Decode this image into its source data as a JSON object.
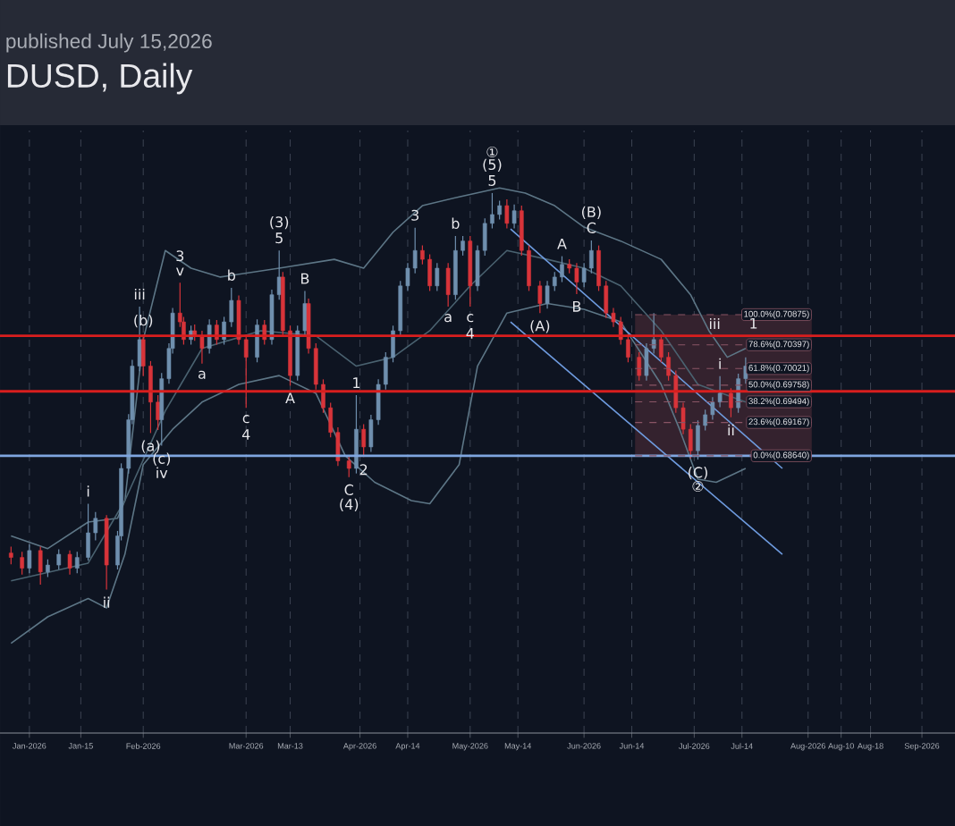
{
  "chart_data": {
    "type": "candlestick",
    "title": "DUSD, Daily",
    "subtitle": "published July 15,2026",
    "x": [
      "2025-12-27",
      "2025-12-30",
      "2026-01-01",
      "2026-01-04",
      "2026-01-06",
      "2026-01-09",
      "2026-01-12",
      "2026-01-14",
      "2026-01-17",
      "2026-01-19",
      "2026-01-22",
      "2026-01-25",
      "2026-01-26",
      "2026-01-28",
      "2026-01-29",
      "2026-01-31",
      "2026-02-01",
      "2026-02-03",
      "2026-02-05",
      "2026-02-06",
      "2026-02-08",
      "2026-02-09",
      "2026-02-11",
      "2026-02-12",
      "2026-02-14",
      "2026-02-15",
      "2026-02-17",
      "2026-02-19",
      "2026-02-21",
      "2026-02-23",
      "2026-02-25",
      "2026-02-27",
      "2026-03-01",
      "2026-03-04",
      "2026-03-06",
      "2026-03-08",
      "2026-03-10",
      "2026-03-11",
      "2026-03-13",
      "2026-03-15",
      "2026-03-17",
      "2026-03-18",
      "2026-03-20",
      "2026-03-22",
      "2026-03-24",
      "2026-03-26",
      "2026-03-29",
      "2026-03-31",
      "2026-04-02",
      "2026-04-04",
      "2026-04-06",
      "2026-04-08",
      "2026-04-10",
      "2026-04-12",
      "2026-04-14",
      "2026-04-16",
      "2026-04-18",
      "2026-04-20",
      "2026-04-22",
      "2026-04-25",
      "2026-04-27",
      "2026-04-29",
      "2026-05-01",
      "2026-05-03",
      "2026-05-05",
      "2026-05-07",
      "2026-05-09",
      "2026-05-11",
      "2026-05-13",
      "2026-05-15",
      "2026-05-17",
      "2026-05-20",
      "2026-05-22",
      "2026-05-24",
      "2026-05-26",
      "2026-05-28",
      "2026-05-30",
      "2026-06-01",
      "2026-06-03",
      "2026-06-05",
      "2026-06-07",
      "2026-06-09",
      "2026-06-11",
      "2026-06-13",
      "2026-06-16",
      "2026-06-18",
      "2026-06-20",
      "2026-06-22",
      "2026-06-24",
      "2026-06-26",
      "2026-06-28",
      "2026-06-30",
      "2026-07-02",
      "2026-07-04",
      "2026-07-06",
      "2026-07-08",
      "2026-07-11",
      "2026-07-13",
      "2026-07-15"
    ],
    "ohlc": [
      [
        0.671,
        0.672,
        0.6692,
        0.6703
      ],
      [
        0.6703,
        0.6712,
        0.6676,
        0.6686
      ],
      [
        0.6686,
        0.6724,
        0.6678,
        0.6714
      ],
      [
        0.6714,
        0.672,
        0.666,
        0.668
      ],
      [
        0.668,
        0.67,
        0.6672,
        0.6691
      ],
      [
        0.6691,
        0.6716,
        0.6684,
        0.6708
      ],
      [
        0.6708,
        0.6714,
        0.6676,
        0.6686
      ],
      [
        0.6686,
        0.6712,
        0.6678,
        0.6703
      ],
      [
        0.6703,
        0.6788,
        0.6698,
        0.6742
      ],
      [
        0.6742,
        0.6775,
        0.673,
        0.6765
      ],
      [
        0.6765,
        0.677,
        0.6652,
        0.6691
      ],
      [
        0.6691,
        0.6745,
        0.6684,
        0.6737
      ],
      [
        0.6737,
        0.6852,
        0.673,
        0.6844
      ],
      [
        0.6844,
        0.693,
        0.6836,
        0.6921
      ],
      [
        0.6921,
        0.7016,
        0.6914,
        0.7006
      ],
      [
        0.7006,
        0.71,
        0.6998,
        0.7048
      ],
      [
        0.7048,
        0.7056,
        0.699,
        0.7006
      ],
      [
        0.7006,
        0.7014,
        0.69,
        0.6949
      ],
      [
        0.6949,
        0.696,
        0.6905,
        0.6921
      ],
      [
        0.6921,
        0.6995,
        0.688,
        0.6986
      ],
      [
        0.6986,
        0.7042,
        0.6978,
        0.7034
      ],
      [
        0.7034,
        0.7098,
        0.7026,
        0.709
      ],
      [
        0.709,
        0.7138,
        0.7068,
        0.7076
      ],
      [
        0.7076,
        0.7084,
        0.704,
        0.7048
      ],
      [
        0.7048,
        0.707,
        0.704,
        0.7062
      ],
      [
        0.7062,
        0.7072,
        0.7046,
        0.7054
      ],
      [
        0.7054,
        0.7062,
        0.701,
        0.7034
      ],
      [
        0.7034,
        0.708,
        0.7026,
        0.7071
      ],
      [
        0.7071,
        0.7079,
        0.704,
        0.7048
      ],
      [
        0.7048,
        0.7084,
        0.704,
        0.7076
      ],
      [
        0.7076,
        0.713,
        0.7068,
        0.711
      ],
      [
        0.711,
        0.7118,
        0.704,
        0.7048
      ],
      [
        0.7048,
        0.7056,
        0.694,
        0.702
      ],
      [
        0.702,
        0.708,
        0.7012,
        0.7071
      ],
      [
        0.7071,
        0.7079,
        0.704,
        0.7048
      ],
      [
        0.7048,
        0.7127,
        0.704,
        0.7119
      ],
      [
        0.7119,
        0.7189,
        0.7111,
        0.7147
      ],
      [
        0.7147,
        0.7155,
        0.7054,
        0.7062
      ],
      [
        0.7062,
        0.707,
        0.6975,
        0.6991
      ],
      [
        0.6991,
        0.707,
        0.6983,
        0.7062
      ],
      [
        0.7062,
        0.7125,
        0.7054,
        0.7105
      ],
      [
        0.7105,
        0.7113,
        0.7026,
        0.7034
      ],
      [
        0.7034,
        0.7042,
        0.6969,
        0.6977
      ],
      [
        0.6977,
        0.6985,
        0.6932,
        0.694
      ],
      [
        0.694,
        0.6948,
        0.6893,
        0.6901
      ],
      [
        0.6901,
        0.6909,
        0.6848,
        0.6856
      ],
      [
        0.6856,
        0.6864,
        0.683,
        0.6844
      ],
      [
        0.6844,
        0.696,
        0.6836,
        0.6906
      ],
      [
        0.6906,
        0.6914,
        0.6862,
        0.6878
      ],
      [
        0.6878,
        0.6929,
        0.687,
        0.6921
      ],
      [
        0.6921,
        0.6985,
        0.6913,
        0.6977
      ],
      [
        0.6977,
        0.7028,
        0.6969,
        0.702
      ],
      [
        0.702,
        0.707,
        0.7012,
        0.7062
      ],
      [
        0.7062,
        0.7141,
        0.7054,
        0.7133
      ],
      [
        0.7133,
        0.7169,
        0.7125,
        0.7161
      ],
      [
        0.7161,
        0.7225,
        0.7153,
        0.7189
      ],
      [
        0.7189,
        0.7197,
        0.7167,
        0.7175
      ],
      [
        0.7175,
        0.7183,
        0.7125,
        0.7133
      ],
      [
        0.7133,
        0.7169,
        0.7125,
        0.7161
      ],
      [
        0.7161,
        0.7169,
        0.71,
        0.7119
      ],
      [
        0.7119,
        0.7212,
        0.7111,
        0.7189
      ],
      [
        0.7189,
        0.7212,
        0.7181,
        0.7204
      ],
      [
        0.7204,
        0.7212,
        0.71,
        0.7133
      ],
      [
        0.7133,
        0.7197,
        0.7125,
        0.7189
      ],
      [
        0.7189,
        0.724,
        0.7181,
        0.7232
      ],
      [
        0.7232,
        0.728,
        0.7224,
        0.7246
      ],
      [
        0.7246,
        0.7268,
        0.7238,
        0.726
      ],
      [
        0.726,
        0.727,
        0.7224,
        0.7232
      ],
      [
        0.7232,
        0.7262,
        0.7224,
        0.7252
      ],
      [
        0.7252,
        0.726,
        0.7181,
        0.7189
      ],
      [
        0.7189,
        0.7197,
        0.7125,
        0.7133
      ],
      [
        0.7133,
        0.7141,
        0.709,
        0.7105
      ],
      [
        0.7105,
        0.7141,
        0.7097,
        0.7133
      ],
      [
        0.7133,
        0.7155,
        0.7125,
        0.7147
      ],
      [
        0.7147,
        0.718,
        0.7139,
        0.7167
      ],
      [
        0.7167,
        0.7175,
        0.7153,
        0.7161
      ],
      [
        0.7161,
        0.7169,
        0.712,
        0.7139
      ],
      [
        0.7139,
        0.7169,
        0.7131,
        0.7161
      ],
      [
        0.7161,
        0.7205,
        0.7153,
        0.7189
      ],
      [
        0.7189,
        0.7197,
        0.7125,
        0.7133
      ],
      [
        0.7133,
        0.7141,
        0.7082,
        0.709
      ],
      [
        0.709,
        0.7098,
        0.7068,
        0.7076
      ],
      [
        0.7076,
        0.7084,
        0.704,
        0.7048
      ],
      [
        0.7048,
        0.7056,
        0.7012,
        0.702
      ],
      [
        0.702,
        0.7028,
        0.6983,
        0.6991
      ],
      [
        0.6991,
        0.7042,
        0.6983,
        0.7034
      ],
      [
        0.7034,
        0.709,
        0.7026,
        0.7048
      ],
      [
        0.7048,
        0.7056,
        0.7012,
        0.702
      ],
      [
        0.702,
        0.7028,
        0.6983,
        0.6991
      ],
      [
        0.6991,
        0.6999,
        0.6932,
        0.694
      ],
      [
        0.694,
        0.6948,
        0.6898,
        0.6906
      ],
      [
        0.6906,
        0.6914,
        0.686,
        0.6872
      ],
      [
        0.6872,
        0.692,
        0.6858,
        0.6912
      ],
      [
        0.6912,
        0.6937,
        0.6904,
        0.6929
      ],
      [
        0.6929,
        0.6957,
        0.6921,
        0.6949
      ],
      [
        0.6949,
        0.699,
        0.6941,
        0.6963
      ],
      [
        0.6963,
        0.6971,
        0.6925,
        0.694
      ],
      [
        0.694,
        0.6994,
        0.6932,
        0.6986
      ],
      [
        0.6986,
        0.702,
        0.6978,
        0.7006
      ]
    ],
    "colors": [
      "#d8343a",
      "#d8343a",
      "#6f8fae",
      "#d8343a",
      "#6f8fae",
      "#6f8fae",
      "#d8343a",
      "#6f8fae",
      "#6f8fae",
      "#6f8fae",
      "#d8343a",
      "#6f8fae",
      "#6f8fae",
      "#6f8fae",
      "#6f8fae",
      "#6f8fae",
      "#d8343a",
      "#d8343a",
      "#d8343a",
      "#6f8fae",
      "#6f8fae",
      "#6f8fae",
      "#d8343a",
      "#d8343a",
      "#6f8fae",
      "#d8343a",
      "#d8343a",
      "#6f8fae",
      "#d8343a",
      "#6f8fae",
      "#6f8fae",
      "#d8343a",
      "#d8343a",
      "#6f8fae",
      "#d8343a",
      "#6f8fae",
      "#6f8fae",
      "#d8343a",
      "#d8343a",
      "#6f8fae",
      "#6f8fae",
      "#d8343a",
      "#d8343a",
      "#d8343a",
      "#d8343a",
      "#d8343a",
      "#d8343a",
      "#6f8fae",
      "#d8343a",
      "#6f8fae",
      "#6f8fae",
      "#6f8fae",
      "#6f8fae",
      "#6f8fae",
      "#6f8fae",
      "#6f8fae",
      "#d8343a",
      "#d8343a",
      "#6f8fae",
      "#d8343a",
      "#6f8fae",
      "#6f8fae",
      "#d8343a",
      "#6f8fae",
      "#6f8fae",
      "#6f8fae",
      "#6f8fae",
      "#d8343a",
      "#6f8fae",
      "#d8343a",
      "#d8343a",
      "#d8343a",
      "#6f8fae",
      "#6f8fae",
      "#6f8fae",
      "#d8343a",
      "#d8343a",
      "#6f8fae",
      "#6f8fae",
      "#d8343a",
      "#d8343a",
      "#d8343a",
      "#d8343a",
      "#d8343a",
      "#d8343a",
      "#6f8fae",
      "#6f8fae",
      "#d8343a",
      "#d8343a",
      "#d8343a",
      "#d8343a",
      "#d8343a",
      "#6f8fae",
      "#6f8fae",
      "#6f8fae",
      "#6f8fae",
      "#d8343a",
      "#6f8fae",
      "#6f8fae"
    ],
    "series": [
      {
        "type": "line",
        "color": "#5d7686",
        "x": [
          "2025-12-27",
          "2026-01-06",
          "2026-01-17",
          "2026-01-25",
          "2026-01-27",
          "2026-02-01",
          "2026-02-07",
          "2026-02-14",
          "2026-02-22",
          "2026-03-10",
          "2026-03-25",
          "2026-04-02",
          "2026-04-10",
          "2026-04-18",
          "2026-04-28",
          "2026-05-09",
          "2026-05-16",
          "2026-05-24",
          "2026-06-01",
          "2026-06-11",
          "2026-06-22",
          "2026-06-30",
          "2026-07-05",
          "2026-07-10",
          "2026-07-15"
        ],
        "values": [
          0.6737,
          0.6717,
          0.6759,
          0.6765,
          0.6793,
          0.7048,
          0.7189,
          0.7161,
          0.7147,
          0.7161,
          0.7175,
          0.7161,
          0.7218,
          0.726,
          0.7274,
          0.7288,
          0.728,
          0.726,
          0.7226,
          0.7204,
          0.7175,
          0.7119,
          0.7062,
          0.702,
          0.7034
        ]
      },
      {
        "type": "line",
        "color": "#4a6270",
        "x": [
          "2025-12-27",
          "2026-01-17",
          "2026-01-27",
          "2026-02-07",
          "2026-02-17",
          "2026-03-05",
          "2026-03-20",
          "2026-03-31",
          "2026-04-10",
          "2026-04-20",
          "2026-05-01",
          "2026-05-11",
          "2026-05-22",
          "2026-06-01",
          "2026-06-11",
          "2026-06-22",
          "2026-07-02",
          "2026-07-15"
        ],
        "values": [
          0.6666,
          0.6694,
          0.6793,
          0.6935,
          0.7034,
          0.7062,
          0.7054,
          0.7006,
          0.702,
          0.7062,
          0.7133,
          0.7189,
          0.7175,
          0.7161,
          0.7133,
          0.7062,
          0.6977,
          0.6949
        ]
      },
      {
        "type": "line",
        "color": "#5d7686",
        "x": [
          "2025-12-27",
          "2026-01-06",
          "2026-01-17",
          "2026-01-22",
          "2026-01-27",
          "2026-02-01",
          "2026-02-09",
          "2026-02-17",
          "2026-02-27",
          "2026-03-10",
          "2026-03-20",
          "2026-03-28",
          "2026-04-05",
          "2026-04-15",
          "2026-04-20",
          "2026-04-28",
          "2026-05-03",
          "2026-05-11",
          "2026-05-22",
          "2026-06-01",
          "2026-06-11",
          "2026-06-22",
          "2026-06-27",
          "2026-07-02",
          "2026-07-07",
          "2026-07-15"
        ],
        "values": [
          0.6567,
          0.6609,
          0.6638,
          0.6623,
          0.6708,
          0.685,
          0.6906,
          0.6949,
          0.6977,
          0.6991,
          0.6963,
          0.6864,
          0.6822,
          0.6793,
          0.6788,
          0.685,
          0.7006,
          0.709,
          0.7105,
          0.7096,
          0.7076,
          0.6977,
          0.6906,
          0.6827,
          0.6822,
          0.6844
        ]
      },
      {
        "type": "line",
        "color": "#6f9ce0",
        "x": [
          "2026-05-12",
          "2026-07-25"
        ],
        "values": [
          0.7223,
          0.6844
        ]
      },
      {
        "type": "line",
        "color": "#6f9ce0",
        "x": [
          "2026-05-12",
          "2026-07-25"
        ],
        "values": [
          0.7076,
          0.6708
        ]
      }
    ],
    "xlim": [
      "2025-12-24",
      "2026-09-10"
    ],
    "ylim": [
      0.6425,
      0.7379
    ],
    "xticks": [
      {
        "value": "2026-01-01",
        "label": "Jan-2026"
      },
      {
        "value": "2026-01-15",
        "label": "Jan-15"
      },
      {
        "value": "2026-02-01",
        "label": "Feb-2026"
      },
      {
        "value": "2026-03-01",
        "label": "Mar-2026"
      },
      {
        "value": "2026-03-13",
        "label": "Mar-13"
      },
      {
        "value": "2026-04-01",
        "label": "Apr-2026"
      },
      {
        "value": "2026-04-14",
        "label": "Apr-14"
      },
      {
        "value": "2026-05-01",
        "label": "May-2026"
      },
      {
        "value": "2026-05-14",
        "label": "May-14"
      },
      {
        "value": "2026-06-01",
        "label": "Jun-2026"
      },
      {
        "value": "2026-06-14",
        "label": "Jun-14"
      },
      {
        "value": "2026-07-01",
        "label": "Jul-2026"
      },
      {
        "value": "2026-07-14",
        "label": "Jul-14"
      },
      {
        "value": "2026-08-01",
        "label": "Aug-2026"
      },
      {
        "value": "2026-08-10",
        "label": "Aug-10"
      },
      {
        "value": "2026-08-18",
        "label": "Aug-18"
      },
      {
        "value": "2026-09-01",
        "label": "Sep-2026"
      }
    ],
    "tick_labels": "x",
    "grid": "x",
    "bands": [
      {
        "axis": "y",
        "from": 0.6864,
        "to": 0.70875,
        "color": "#34222e"
      }
    ],
    "ref_lines": [
      {
        "axis": "y",
        "value": 0.7054,
        "color": "#d81e1e"
      },
      {
        "axis": "y",
        "value": 0.6966,
        "color": "#d81e1e"
      },
      {
        "axis": "y",
        "value": 0.6864,
        "color": "#7fa6e0"
      },
      {
        "axis": "y",
        "value": 0.70875,
        "label": "100.0%(0.70875)",
        "color": "#8a5565",
        "line_style": "dashed"
      },
      {
        "axis": "y",
        "value": 0.70397,
        "label": "78.6%(0.70397)",
        "color": "#8a5565",
        "line_style": "dashed"
      },
      {
        "axis": "y",
        "value": 0.70021,
        "label": "61.8%(0.70021)",
        "color": "#8a5565",
        "line_style": "dashed"
      },
      {
        "axis": "y",
        "value": 0.69758,
        "label": "50.0%(0.69758)",
        "color": "#8a5565",
        "line_style": "dashed"
      },
      {
        "axis": "y",
        "value": 0.69494,
        "label": "38.2%(0.69494)",
        "color": "#8a5565",
        "line_style": "dashed"
      },
      {
        "axis": "y",
        "value": 0.69167,
        "label": "23.6%(0.69167)",
        "color": "#8a5565",
        "line_style": "dashed"
      },
      {
        "axis": "y",
        "value": 0.6864,
        "label": "0.0%(0.68640)",
        "color": "#8a5565",
        "line_style": "dashed"
      }
    ],
    "annotations": [
      {
        "text": "i",
        "x": "2026-01-17",
        "y": 0.6788
      },
      {
        "text": "ii",
        "x": "2026-01-22",
        "y": 0.6652
      },
      {
        "text": "iii",
        "x": "2026-01-31",
        "y": 0.71
      },
      {
        "text": "(b)",
        "x": "2026-02-01",
        "y": 0.7056
      },
      {
        "text": "(a)",
        "x": "2026-02-03",
        "y": 0.69
      },
      {
        "text": "(c)",
        "x": "2026-02-06",
        "y": 0.688
      },
      {
        "text": "iv",
        "x": "2026-02-06",
        "y": 0.688
      },
      {
        "text": "v",
        "x": "2026-02-11",
        "y": 0.7138
      },
      {
        "text": "3",
        "x": "2026-02-11",
        "y": 0.7138
      },
      {
        "text": "a",
        "x": "2026-02-17",
        "y": 0.701
      },
      {
        "text": "b",
        "x": "2026-02-25",
        "y": 0.713
      },
      {
        "text": "c",
        "x": "2026-03-01",
        "y": 0.694
      },
      {
        "text": "4",
        "x": "2026-03-01",
        "y": 0.694
      },
      {
        "text": "5",
        "x": "2026-03-10",
        "y": 0.7189
      },
      {
        "text": "(3)",
        "x": "2026-03-10",
        "y": 0.7189
      },
      {
        "text": "B",
        "x": "2026-03-17",
        "y": 0.7125
      },
      {
        "text": "A",
        "x": "2026-03-13",
        "y": 0.6975
      },
      {
        "text": "1",
        "x": "2026-03-31",
        "y": 0.696
      },
      {
        "text": "2",
        "x": "2026-04-02",
        "y": 0.6862
      },
      {
        "text": "C",
        "x": "2026-03-29",
        "y": 0.683
      },
      {
        "text": "(4)",
        "x": "2026-03-29",
        "y": 0.683
      },
      {
        "text": "3",
        "x": "2026-04-16",
        "y": 0.7225
      },
      {
        "text": "b",
        "x": "2026-04-27",
        "y": 0.7212
      },
      {
        "text": "a",
        "x": "2026-04-25",
        "y": 0.71
      },
      {
        "text": "c",
        "x": "2026-05-01",
        "y": 0.71
      },
      {
        "text": "4",
        "x": "2026-05-01",
        "y": 0.71
      },
      {
        "text": "5",
        "x": "2026-05-07",
        "y": 0.728
      },
      {
        "text": "(5)",
        "x": "2026-05-07",
        "y": 0.728
      },
      {
        "text": "①",
        "x": "2026-05-07",
        "y": 0.728
      },
      {
        "text": "C",
        "x": "2026-06-03",
        "y": 0.7205
      },
      {
        "text": "(B)",
        "x": "2026-06-03",
        "y": 0.7205
      },
      {
        "text": "A",
        "x": "2026-05-26",
        "y": 0.718
      },
      {
        "text": "B",
        "x": "2026-05-30",
        "y": 0.712
      },
      {
        "text": "(A)",
        "x": "2026-05-20",
        "y": 0.709
      },
      {
        "text": "(C)",
        "x": "2026-07-02",
        "y": 0.6858
      },
      {
        "text": "②",
        "x": "2026-07-02",
        "y": 0.6858
      },
      {
        "text": "i",
        "x": "2026-07-08",
        "y": 0.699
      },
      {
        "text": "ii",
        "x": "2026-07-11",
        "y": 0.6925
      },
      "iii",
      "1"
    ]
  }
}
